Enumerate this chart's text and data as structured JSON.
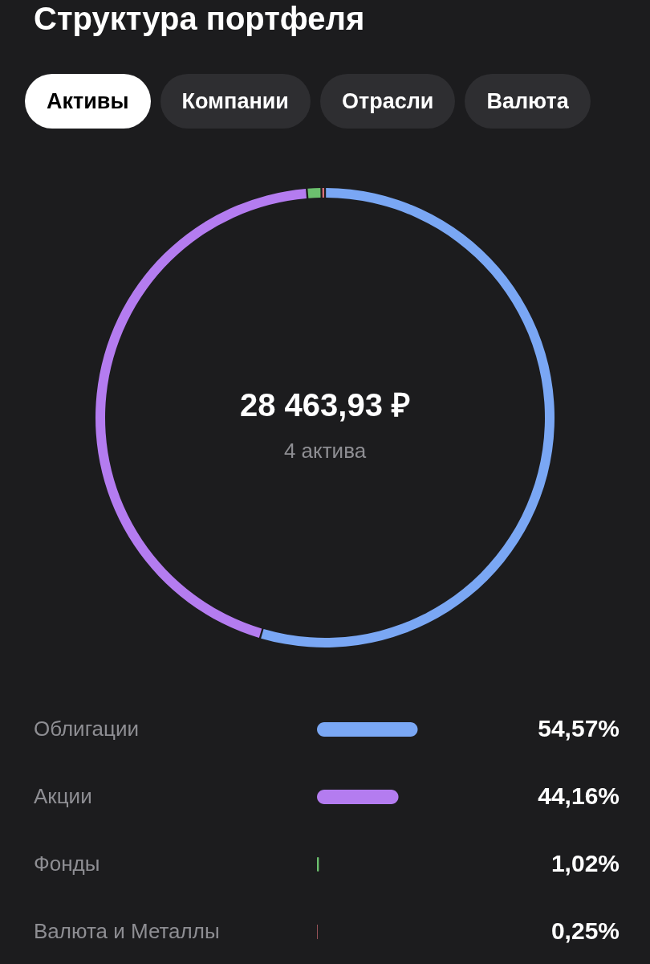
{
  "chart_data": [
    {
      "type": "donut",
      "title": "Структура портфеля",
      "categories": [
        null,
        null,
        null,
        null
      ],
      "values": [
        54.57,
        44.16,
        1.02,
        0.25
      ],
      "colors": [
        "#7aa7f4",
        "#b47cf0",
        "#6cc06e",
        "#f07a84"
      ],
      "annotations": [
        "Активы",
        "Компании",
        "Отрасли",
        "Валюта",
        "28 463,93 ₽",
        "4 актива"
      ]
    },
    {
      "type": "bar",
      "orientation": "horizontal",
      "categories": [
        "Облигации",
        "Акции",
        "Фонды",
        "Валюта и Металлы"
      ],
      "values": [
        54.57,
        44.16,
        1.02,
        0.25
      ],
      "colors": [
        "#7aa7f4",
        "#b47cf0",
        "#6cc06e",
        "#f07a84"
      ],
      "value_labels": [
        "54,57%",
        "44,16%",
        "1,02%",
        "0,25%"
      ]
    }
  ]
}
